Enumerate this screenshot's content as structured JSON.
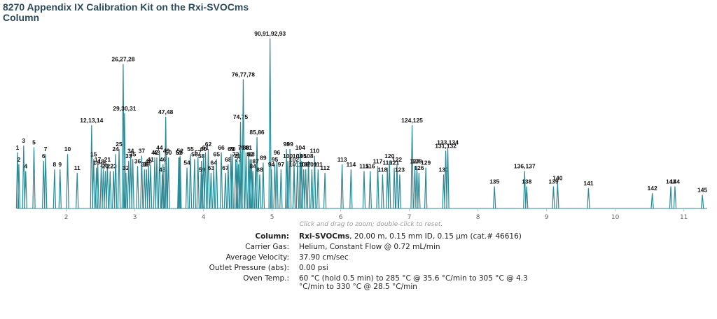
{
  "chart_data": {
    "type": "chromatogram",
    "title": "8270 Appendix IX Calibration Kit on the Rxi-SVOCms Column",
    "color": "#2a8a96",
    "xlim": [
      1.28,
      11.34
    ],
    "ylim": [
      0,
      100
    ],
    "xticks": [
      2,
      3,
      4,
      5,
      6,
      7,
      8,
      9,
      10,
      11
    ],
    "note": "Click and drag to zoom; double-click to reset.",
    "peak_labels": [
      "1",
      "2",
      "3",
      "4",
      "5",
      "6",
      "7",
      "8",
      "9",
      "10",
      "11",
      "12,13,14",
      "15",
      "16",
      "17",
      "18",
      "19",
      "20",
      "21",
      "22",
      "23",
      "24",
      "25",
      "26,27,28",
      "29,30,31",
      "32",
      "33",
      "34",
      "35",
      "36",
      "37",
      "38",
      "39",
      "40",
      "41",
      "42",
      "43",
      "44",
      "45",
      "46",
      "47,48",
      "49",
      "50",
      "51",
      "52",
      "53",
      "54",
      "55",
      "56",
      "57",
      "58",
      "59",
      "60",
      "61",
      "62",
      "63",
      "64",
      "65",
      "66",
      "67",
      "68",
      "69",
      "70",
      "71",
      "72",
      "73",
      "74,75",
      "76,77,78",
      "79",
      "80",
      "81",
      "82",
      "83",
      "84",
      "85,86",
      "87",
      "88",
      "89",
      "90,91,92,93",
      "94",
      "95",
      "96",
      "97",
      "98",
      "99",
      "100",
      "101",
      "102",
      "103",
      "104",
      "105",
      "106",
      "107",
      "108",
      "109",
      "110",
      "111",
      "112",
      "113",
      "114",
      "115",
      "116",
      "117",
      "118",
      "119",
      "120",
      "121",
      "122",
      "123",
      "124,125",
      "126",
      "127",
      "128",
      "129",
      "130",
      "131,132",
      "133,134",
      "135",
      "136,137",
      "138",
      "139",
      "140",
      "141",
      "142",
      "143",
      "144",
      "145"
    ],
    "x": [
      1.29,
      1.31,
      1.38,
      1.41,
      1.53,
      1.67,
      1.7,
      1.83,
      1.91,
      2.02,
      2.16,
      2.37,
      2.4,
      2.44,
      2.46,
      2.51,
      2.54,
      2.57,
      2.6,
      2.64,
      2.69,
      2.72,
      2.77,
      2.83,
      2.85,
      2.87,
      2.91,
      2.94,
      2.97,
      3.04,
      3.1,
      3.14,
      3.17,
      3.2,
      3.23,
      3.29,
      3.32,
      3.36,
      3.4,
      3.41,
      3.45,
      3.46,
      3.49,
      3.64,
      3.66,
      3.65,
      3.76,
      3.81,
      3.87,
      3.92,
      3.97,
      3.98,
      4.0,
      4.03,
      4.07,
      4.11,
      4.15,
      4.19,
      4.26,
      4.32,
      4.36,
      4.4,
      4.42,
      4.49,
      4.47,
      4.51,
      4.54,
      4.58,
      4.55,
      4.62,
      4.66,
      4.68,
      4.7,
      4.72,
      4.78,
      4.76,
      4.82,
      4.87,
      4.97,
      4.99,
      5.04,
      5.07,
      5.13,
      5.21,
      5.26,
      5.23,
      5.32,
      5.32,
      5.37,
      5.41,
      5.43,
      5.46,
      5.49,
      5.53,
      5.58,
      5.62,
      5.67,
      5.77,
      6.02,
      6.15,
      6.34,
      6.43,
      6.54,
      6.61,
      6.68,
      6.71,
      6.78,
      6.82,
      6.86,
      7.04,
      7.14,
      7.08,
      7.11,
      7.24,
      7.5,
      7.53,
      7.56,
      8.24,
      8.68,
      8.71,
      9.1,
      9.16,
      9.61,
      10.54,
      10.81,
      10.87,
      11.27
    ],
    "values": [
      33,
      26,
      37,
      22,
      36,
      28,
      32,
      23,
      23,
      32,
      21,
      49,
      29,
      24,
      26,
      25,
      23,
      22,
      26,
      22,
      22,
      32,
      35,
      85,
      56,
      21,
      28,
      31,
      29,
      25,
      31,
      23,
      23,
      25,
      26,
      30,
      30,
      33,
      20,
      26,
      54,
      31,
      30,
      30,
      31,
      30,
      24,
      32,
      29,
      30,
      28,
      20,
      32,
      33,
      35,
      21,
      24,
      29,
      33,
      21,
      26,
      32,
      32,
      28,
      29,
      26,
      51,
      76,
      33,
      33,
      33,
      29,
      29,
      22,
      42,
      25,
      20,
      27,
      100,
      23,
      26,
      30,
      23,
      35,
      35,
      28,
      23,
      26,
      28,
      33,
      28,
      23,
      23,
      28,
      23,
      31,
      23,
      21,
      26,
      23,
      22,
      22,
      25,
      20,
      24,
      28,
      24,
      26,
      20,
      49,
      21,
      25,
      25,
      24,
      20,
      34,
      36,
      13,
      22,
      13,
      13,
      15,
      12,
      9,
      13,
      13,
      8
    ],
    "info": {
      "rows": [
        {
          "label": "Column:",
          "bold": "Rxi-SVOCms",
          "value": ", 20.00 m, 0.15 mm ID, 0.15 µm (cat.# 46616)"
        },
        {
          "label": "Carrier Gas:",
          "value": "Helium, Constant Flow @ 0.72 mL/min"
        },
        {
          "label": "Average Velocity:",
          "value": "37.90 cm/sec"
        },
        {
          "label": "Outlet Pressure (abs):",
          "value": "0.00 psi"
        },
        {
          "label": "Oven Temp.:",
          "value": "60 °C (hold 0.5 min) to 285 °C @ 35.6 °C/min to 305 °C @ 4.3 °C/min to 330 °C @ 28.5 °C/min"
        }
      ]
    }
  }
}
